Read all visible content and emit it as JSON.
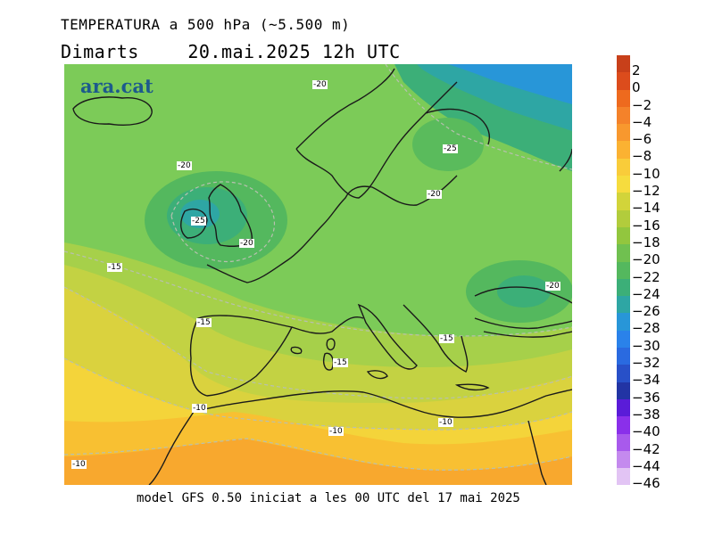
{
  "header": {
    "title": "TEMPERATURA a 500 hPa (~5.500 m)",
    "day": "Dimarts",
    "datetime": "20.mai.2025 12h UTC"
  },
  "logo": {
    "text": "ara.cat"
  },
  "footer": {
    "text": "model GFS 0.50 iniciat a les 00 UTC del 17 mai 2025"
  },
  "map": {
    "contour_labels": [
      "-20",
      "-25",
      "-20",
      "-25",
      "-20",
      "-20",
      "-15",
      "-15",
      "-20",
      "-15",
      "-15",
      "-10",
      "-10",
      "-10",
      "-10"
    ]
  },
  "legend": {
    "labels": [
      "2",
      "0",
      "−2",
      "−4",
      "−6",
      "−8",
      "−10",
      "−12",
      "−14",
      "−16",
      "−18",
      "−20",
      "−22",
      "−24",
      "−26",
      "−28",
      "−30",
      "−32",
      "−34",
      "−36",
      "−38",
      "−40",
      "−42",
      "−44",
      "−46"
    ],
    "colors": [
      "#c8401a",
      "#dc4c1c",
      "#ee6a1e",
      "#f4822a",
      "#f8982e",
      "#fbb232",
      "#f9cc3a",
      "#f6dc3e",
      "#d2d43a",
      "#b2cc3c",
      "#92c63e",
      "#70c050",
      "#54b85e",
      "#3caf78",
      "#2ea6a4",
      "#2896d8",
      "#2a82ea",
      "#2a6ae0",
      "#2850c8",
      "#2234a4",
      "#5a1cd8",
      "#8a30ea",
      "#a85aec",
      "#c48aee",
      "#e2c4f4"
    ]
  }
}
